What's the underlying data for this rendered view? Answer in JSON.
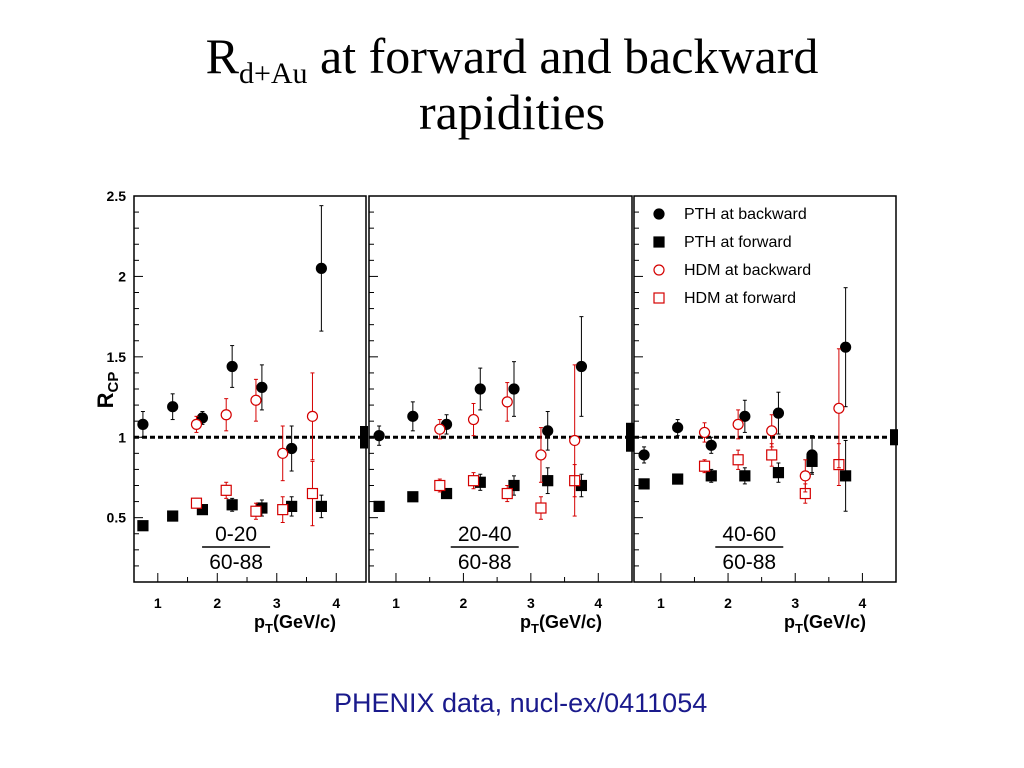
{
  "slide": {
    "title_main": "R",
    "title_sub": "d+Au",
    "title_rest": " at forward and backward",
    "title_line2": "rapidities",
    "credit": "PHENIX data, nucl-ex/0411054"
  },
  "chart_data": {
    "type": "scatter",
    "ylabel_main": "R",
    "ylabel_sub": "CP",
    "xlabel_main": "p",
    "xlabel_sub": "T",
    "xlabel_rest": "(GeV/c)",
    "ylim": [
      0.1,
      2.5
    ],
    "xlim": [
      0.6,
      4.5
    ],
    "yticks": [
      "0.5",
      "1",
      "1.5",
      "2",
      "2.5"
    ],
    "xticks": [
      "1",
      "2",
      "3",
      "4"
    ],
    "reference_line": 1,
    "legend_position": "top-right",
    "colors": {
      "pth": "#000000",
      "hdm": "#d40000"
    },
    "legend": [
      {
        "key": "pth_back",
        "label": "PTH at backward",
        "marker": "filled-circle",
        "color": "#000000"
      },
      {
        "key": "pth_fwd",
        "label": "PTH at forward",
        "marker": "filled-square",
        "color": "#000000"
      },
      {
        "key": "hdm_back",
        "label": "HDM at backward",
        "marker": "open-circle",
        "color": "#d40000"
      },
      {
        "key": "hdm_fwd",
        "label": "HDM at forward",
        "marker": "open-square",
        "color": "#d40000"
      }
    ],
    "panels": [
      {
        "label_top": "0-20",
        "label_bottom": "60-88",
        "norm_uncertainty": [
          0.93,
          1.07
        ],
        "series": {
          "pth_back": [
            {
              "x": 0.75,
              "y": 1.08,
              "err": 0.08
            },
            {
              "x": 1.25,
              "y": 1.19,
              "err": 0.08
            },
            {
              "x": 1.75,
              "y": 1.12,
              "err": 0.04
            },
            {
              "x": 2.25,
              "y": 1.44,
              "err": 0.13
            },
            {
              "x": 2.75,
              "y": 1.31,
              "err": 0.14
            },
            {
              "x": 3.25,
              "y": 0.93,
              "err": 0.14
            },
            {
              "x": 3.75,
              "y": 2.05,
              "err": 0.39
            }
          ],
          "pth_fwd": [
            {
              "x": 0.75,
              "y": 0.45,
              "err": 0.0
            },
            {
              "x": 1.25,
              "y": 0.51,
              "err": 0.0
            },
            {
              "x": 1.75,
              "y": 0.55,
              "err": 0.03
            },
            {
              "x": 2.25,
              "y": 0.58,
              "err": 0.04
            },
            {
              "x": 2.75,
              "y": 0.56,
              "err": 0.05
            },
            {
              "x": 3.25,
              "y": 0.57,
              "err": 0.06
            },
            {
              "x": 3.75,
              "y": 0.57,
              "err": 0.07
            }
          ],
          "hdm_back": [
            {
              "x": 1.65,
              "y": 1.08,
              "err": 0.05
            },
            {
              "x": 2.15,
              "y": 1.14,
              "err": 0.1
            },
            {
              "x": 2.65,
              "y": 1.23,
              "err": 0.13
            },
            {
              "x": 3.1,
              "y": 0.9,
              "err": 0.17
            },
            {
              "x": 3.6,
              "y": 1.13,
              "err": 0.27
            }
          ],
          "hdm_fwd": [
            {
              "x": 1.65,
              "y": 0.59,
              "err": 0.03
            },
            {
              "x": 2.15,
              "y": 0.67,
              "err": 0.05
            },
            {
              "x": 2.65,
              "y": 0.54,
              "err": 0.05
            },
            {
              "x": 3.1,
              "y": 0.55,
              "err": 0.08
            },
            {
              "x": 3.6,
              "y": 0.65,
              "err": 0.2
            }
          ]
        }
      },
      {
        "label_top": "20-40",
        "label_bottom": "60-88",
        "norm_uncertainty": [
          0.91,
          1.09
        ],
        "series": {
          "pth_back": [
            {
              "x": 0.75,
              "y": 1.01,
              "err": 0.06
            },
            {
              "x": 1.25,
              "y": 1.13,
              "err": 0.09
            },
            {
              "x": 1.75,
              "y": 1.08,
              "err": 0.06
            },
            {
              "x": 2.25,
              "y": 1.3,
              "err": 0.13
            },
            {
              "x": 2.75,
              "y": 1.3,
              "err": 0.17
            },
            {
              "x": 3.25,
              "y": 1.04,
              "err": 0.12
            },
            {
              "x": 3.75,
              "y": 1.44,
              "err": 0.31
            }
          ],
          "pth_fwd": [
            {
              "x": 0.75,
              "y": 0.57,
              "err": 0.0
            },
            {
              "x": 1.25,
              "y": 0.63,
              "err": 0.0
            },
            {
              "x": 1.75,
              "y": 0.65,
              "err": 0.03
            },
            {
              "x": 2.25,
              "y": 0.72,
              "err": 0.05
            },
            {
              "x": 2.75,
              "y": 0.7,
              "err": 0.06
            },
            {
              "x": 3.25,
              "y": 0.73,
              "err": 0.08
            },
            {
              "x": 3.75,
              "y": 0.7,
              "err": 0.07
            }
          ],
          "hdm_back": [
            {
              "x": 1.65,
              "y": 1.05,
              "err": 0.06
            },
            {
              "x": 2.15,
              "y": 1.11,
              "err": 0.1
            },
            {
              "x": 2.65,
              "y": 1.22,
              "err": 0.12
            },
            {
              "x": 3.15,
              "y": 0.89,
              "err": 0.17
            },
            {
              "x": 3.65,
              "y": 0.98,
              "err": 0.47
            }
          ],
          "hdm_fwd": [
            {
              "x": 1.65,
              "y": 0.7,
              "err": 0.04
            },
            {
              "x": 2.15,
              "y": 0.73,
              "err": 0.05
            },
            {
              "x": 2.65,
              "y": 0.65,
              "err": 0.05
            },
            {
              "x": 3.15,
              "y": 0.56,
              "err": 0.07
            },
            {
              "x": 3.65,
              "y": 0.73,
              "err": 0.1
            }
          ]
        }
      },
      {
        "label_top": "40-60",
        "label_bottom": "60-88",
        "norm_uncertainty": [
          0.95,
          1.05
        ],
        "series": {
          "pth_back": [
            {
              "x": 0.75,
              "y": 0.89,
              "err": 0.05
            },
            {
              "x": 1.25,
              "y": 1.06,
              "err": 0.05
            },
            {
              "x": 1.75,
              "y": 0.95,
              "err": 0.05
            },
            {
              "x": 2.25,
              "y": 1.13,
              "err": 0.1
            },
            {
              "x": 2.75,
              "y": 1.15,
              "err": 0.13
            },
            {
              "x": 3.25,
              "y": 0.89,
              "err": 0.12
            },
            {
              "x": 3.75,
              "y": 1.56,
              "err": 0.37
            }
          ],
          "pth_fwd": [
            {
              "x": 0.75,
              "y": 0.71,
              "err": 0.02
            },
            {
              "x": 1.25,
              "y": 0.74,
              "err": 0.03
            },
            {
              "x": 1.75,
              "y": 0.76,
              "err": 0.04
            },
            {
              "x": 2.25,
              "y": 0.76,
              "err": 0.05
            },
            {
              "x": 2.75,
              "y": 0.78,
              "err": 0.06
            },
            {
              "x": 3.25,
              "y": 0.85,
              "err": 0.07
            },
            {
              "x": 3.75,
              "y": 0.76,
              "err": 0.22
            }
          ],
          "hdm_back": [
            {
              "x": 1.65,
              "y": 1.03,
              "err": 0.06
            },
            {
              "x": 2.15,
              "y": 1.08,
              "err": 0.09
            },
            {
              "x": 2.65,
              "y": 1.04,
              "err": 0.1
            },
            {
              "x": 3.15,
              "y": 0.76,
              "err": 0.1
            },
            {
              "x": 3.65,
              "y": 1.18,
              "err": 0.37
            }
          ],
          "hdm_fwd": [
            {
              "x": 1.65,
              "y": 0.82,
              "err": 0.04
            },
            {
              "x": 2.15,
              "y": 0.86,
              "err": 0.06
            },
            {
              "x": 2.65,
              "y": 0.89,
              "err": 0.07
            },
            {
              "x": 3.15,
              "y": 0.65,
              "err": 0.06
            },
            {
              "x": 3.65,
              "y": 0.83,
              "err": 0.13
            }
          ]
        }
      }
    ]
  }
}
